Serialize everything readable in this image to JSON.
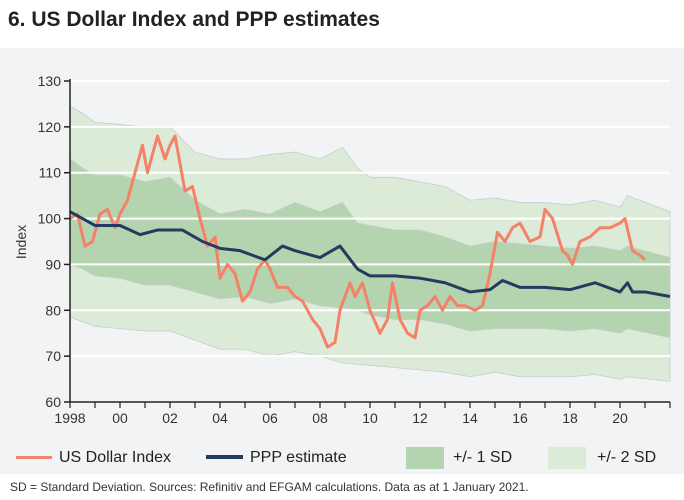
{
  "title": "6. US Dollar Index and PPP estimates",
  "footer": "SD = Standard Deviation. Sources: Refinitiv and EFGAM calculations. Data as at 1 January 2021.",
  "chart_data": {
    "type": "line",
    "title": "6. US Dollar Index and PPP estimates",
    "ylabel": "Index",
    "xlabel": "",
    "ylim": [
      60,
      130
    ],
    "xlim": [
      1998,
      2022
    ],
    "yticks": [
      "60",
      "70",
      "80",
      "90",
      "100",
      "110",
      "120",
      "130"
    ],
    "xticks": [
      "1998",
      "00",
      "02",
      "04",
      "06",
      "08",
      "10",
      "12",
      "14",
      "16",
      "18",
      "20"
    ],
    "grid": true,
    "legend": "bottom",
    "colors": {
      "usd": "#f4826a",
      "ppp": "#243a5e",
      "sd1": "#b3d4ae",
      "sd2": "#dcebd7"
    },
    "series": [
      {
        "name": "US Dollar Index",
        "x": [
          1998,
          1998.3,
          1998.6,
          1998.9,
          1999.2,
          1999.5,
          1999.8,
          2000,
          2000.3,
          2000.6,
          2000.9,
          2001.1,
          2001.5,
          2001.8,
          2002,
          2002.2,
          2002.6,
          2002.9,
          2003.2,
          2003.5,
          2003.8,
          2004,
          2004.3,
          2004.6,
          2004.9,
          2005.2,
          2005.5,
          2005.8,
          2006,
          2006.3,
          2006.7,
          2007,
          2007.3,
          2007.7,
          2008,
          2008.3,
          2008.6,
          2008.8,
          2009.2,
          2009.4,
          2009.7,
          2010,
          2010.4,
          2010.7,
          2010.9,
          2011.2,
          2011.5,
          2011.8,
          2012,
          2012.3,
          2012.6,
          2012.9,
          2013.2,
          2013.5,
          2013.8,
          2014.2,
          2014.5,
          2014.8,
          2015.1,
          2015.4,
          2015.7,
          2016,
          2016.4,
          2016.8,
          2017,
          2017.3,
          2017.7,
          2017.9,
          2018.1,
          2018.4,
          2018.8,
          2019.2,
          2019.6,
          2020,
          2020.2,
          2020.5,
          2020.8,
          2021
        ],
        "values": [
          100,
          101,
          94,
          95,
          101,
          102,
          98,
          101,
          104,
          110,
          116,
          110,
          118,
          113,
          116,
          118,
          106,
          107,
          100,
          94,
          96,
          87,
          90,
          88,
          82,
          84,
          89,
          91,
          89,
          85,
          85,
          83,
          82,
          78,
          76,
          72,
          73,
          80,
          86,
          83,
          86,
          80,
          75,
          78,
          86,
          78,
          75,
          74,
          80,
          81,
          83,
          80,
          83,
          81,
          81,
          80,
          81,
          88,
          97,
          95,
          98,
          99,
          95,
          96,
          102,
          100,
          93,
          92,
          90,
          95,
          96,
          98,
          98,
          99,
          100,
          93,
          92,
          91
        ]
      },
      {
        "name": "PPP estimate",
        "x": [
          1998,
          1999,
          2000,
          2000.8,
          2001.5,
          2002.5,
          2003.3,
          2004,
          2004.8,
          2005.8,
          2006.5,
          2007,
          2008,
          2008.8,
          2009.5,
          2010,
          2011,
          2012,
          2013,
          2014,
          2014.8,
          2015.3,
          2016,
          2017,
          2018,
          2019,
          2020,
          2020.3,
          2020.5,
          2021,
          2022
        ],
        "values": [
          101.5,
          98.5,
          98.5,
          96.5,
          97.5,
          97.5,
          95,
          93.5,
          93,
          91,
          94,
          93,
          91.5,
          94,
          89,
          87.5,
          87.5,
          87,
          86,
          84,
          84.5,
          86.5,
          85,
          85,
          84.5,
          86,
          84,
          86,
          84,
          84,
          83
        ]
      }
    ],
    "bands": [
      {
        "name": "+/- 1 SD",
        "x": [
          1998,
          1998.5,
          1999,
          2000,
          2001,
          2002,
          2003,
          2004,
          2005,
          2006,
          2007,
          2008,
          2008.9,
          2009.5,
          2010,
          2011,
          2012,
          2013,
          2014,
          2015,
          2016,
          2017,
          2018,
          2019,
          2020,
          2020.3,
          2022
        ],
        "upper": [
          113,
          111,
          109.5,
          109.5,
          108,
          109,
          104,
          101,
          102,
          101,
          103.5,
          101.5,
          103.5,
          99,
          98.5,
          97.5,
          97.5,
          96,
          94,
          95,
          94.5,
          94,
          93.5,
          94,
          93,
          94,
          91.5
        ],
        "lower": [
          90,
          89,
          87.5,
          87,
          85.5,
          85.5,
          84,
          82.5,
          83,
          81.5,
          82.5,
          81,
          80.5,
          80,
          79,
          78,
          78,
          77,
          75.5,
          76,
          76,
          76,
          75.5,
          76,
          75,
          76,
          74
        ]
      },
      {
        "name": "+/- 2 SD",
        "x": [
          1998,
          1998.5,
          1999,
          2000,
          2001,
          2002,
          2003,
          2004,
          2005,
          2006,
          2007,
          2008,
          2008.9,
          2009.5,
          2010,
          2011,
          2012,
          2013,
          2014,
          2015,
          2016,
          2017,
          2018,
          2019,
          2020,
          2020.3,
          2022
        ],
        "upper": [
          124.5,
          123,
          121,
          120.5,
          120,
          120,
          114.5,
          113,
          113,
          114,
          114.5,
          113,
          115.5,
          111,
          109,
          109,
          108,
          107,
          104,
          104.5,
          103.5,
          103.5,
          103,
          104,
          102.5,
          105,
          101.5
        ],
        "lower": [
          78.5,
          77.5,
          76.5,
          76,
          75.5,
          75.5,
          73.5,
          71.5,
          71.5,
          70,
          71,
          70,
          68.5,
          68.2,
          68,
          67.5,
          67,
          66.5,
          65.5,
          66.5,
          65.5,
          65.5,
          65.5,
          66,
          65,
          65.5,
          64.5
        ]
      }
    ]
  }
}
